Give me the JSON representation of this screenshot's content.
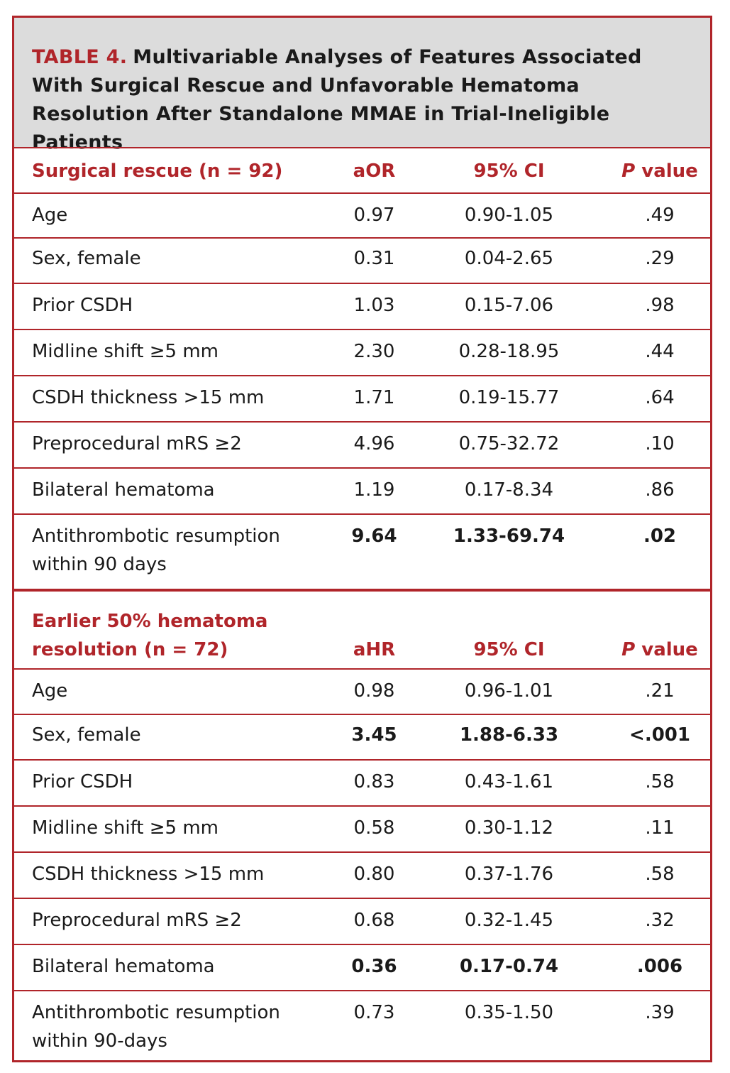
{
  "title": {
    "label": "TABLE 4.",
    "text": "Multivariable Analyses of Features Associated With Surgical Rescue and Unfavorable Hematoma Resolution After Standalone MMAE in Trial-Ineligible Patients"
  },
  "section1": {
    "header": {
      "label": "Surgical rescue (n = 92)",
      "col1": "aOR",
      "col2": "95% CI",
      "p_italic": "P",
      "p_rest": " value"
    },
    "rows": [
      {
        "label": "Age",
        "v1": "0.97",
        "v2": "0.90-1.05",
        "p": ".49"
      },
      {
        "label": "Sex, female",
        "v1": "0.31",
        "v2": "0.04-2.65",
        "p": ".29"
      },
      {
        "label": "Prior CSDH",
        "v1": "1.03",
        "v2": "0.15-7.06",
        "p": ".98"
      },
      {
        "label": "Midline shift ≥5 mm",
        "v1": "2.30",
        "v2": "0.28-18.95",
        "p": ".44"
      },
      {
        "label": "CSDH thickness >15 mm",
        "v1": "1.71",
        "v2": "0.19-15.77",
        "p": ".64"
      },
      {
        "label": "Preprocedural mRS ≥2",
        "v1": "4.96",
        "v2": "0.75-32.72",
        "p": ".10"
      },
      {
        "label": "Bilateral hematoma",
        "v1": "1.19",
        "v2": "0.17-8.34",
        "p": ".86"
      },
      {
        "label": "Antithrombotic resumption within 90 days",
        "v1": "9.64",
        "v2": "1.33-69.74",
        "p": ".02"
      }
    ]
  },
  "section2": {
    "header": {
      "label": "Earlier 50% hematoma resolution (n = 72)",
      "col1": "aHR",
      "col2": "95% CI",
      "p_italic": "P",
      "p_rest": " value"
    },
    "rows": [
      {
        "label": "Age",
        "v1": "0.98",
        "v2": "0.96-1.01",
        "p": ".21"
      },
      {
        "label": "Sex, female",
        "v1": "3.45",
        "v2": "1.88-6.33",
        "p": "<.001"
      },
      {
        "label": "Prior CSDH",
        "v1": "0.83",
        "v2": "0.43-1.61",
        "p": ".58"
      },
      {
        "label": "Midline shift ≥5 mm",
        "v1": "0.58",
        "v2": "0.30-1.12",
        "p": ".11"
      },
      {
        "label": "CSDH thickness >15 mm",
        "v1": "0.80",
        "v2": "0.37-1.76",
        "p": ".58"
      },
      {
        "label": "Preprocedural mRS ≥2",
        "v1": "0.68",
        "v2": "0.32-1.45",
        "p": ".32"
      },
      {
        "label": "Bilateral hematoma",
        "v1": "0.36",
        "v2": "0.17-0.74",
        "p": ".006"
      },
      {
        "label": "Antithrombotic resumption within 90-days",
        "v1": "0.73",
        "v2": "0.35-1.50",
        "p": ".39"
      }
    ]
  },
  "colors": {
    "accent": "#b0252a",
    "title_bg": "#dcdcdc"
  }
}
